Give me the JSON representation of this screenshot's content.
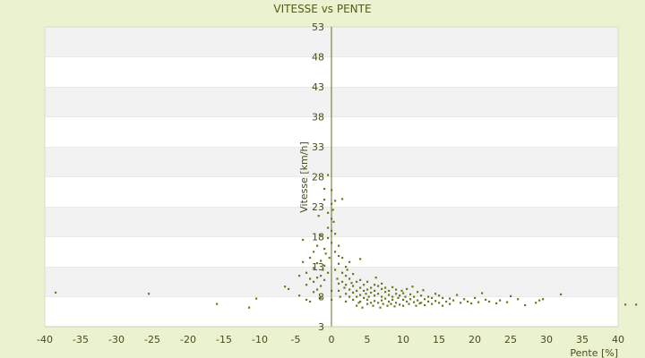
{
  "chart_data": {
    "type": "scatter",
    "title": "VITESSE vs PENTE",
    "xlabel": "Pente [%]",
    "ylabel": "Vitesse [km/h]",
    "xlim": [
      -40,
      40
    ],
    "ylim": [
      3,
      53
    ],
    "xticks": [
      "-40",
      "-35",
      "-30",
      "-25",
      "-20",
      "-15",
      "-10",
      "-5",
      "0",
      "5",
      "10",
      "15",
      "20",
      "25",
      "30",
      "35",
      "40"
    ],
    "yticks": [
      "3",
      "8",
      "13",
      "18",
      "23",
      "28",
      "33",
      "38",
      "43",
      "48",
      "53"
    ],
    "grid": true,
    "colors": {
      "background": "#ebf2cf",
      "band_light": "#ffffff",
      "band_dark": "#f2f2f2",
      "axis": "#6b6b20",
      "marker": "#6b7a1a"
    },
    "points": [
      [
        -38.5,
        8.7
      ],
      [
        -25.5,
        8.5
      ],
      [
        -16,
        6.8
      ],
      [
        -10.5,
        7.7
      ],
      [
        -11.5,
        6.2
      ],
      [
        -6.5,
        9.7
      ],
      [
        -6,
        9.3
      ],
      [
        -4.5,
        11.5
      ],
      [
        -4.5,
        8.2
      ],
      [
        -4,
        13.8
      ],
      [
        -4,
        17.5
      ],
      [
        -3.5,
        12
      ],
      [
        -3.5,
        10
      ],
      [
        -3.5,
        7.5
      ],
      [
        -3,
        11
      ],
      [
        -3,
        14.5
      ],
      [
        -3,
        7.2
      ],
      [
        -2.5,
        10.5
      ],
      [
        -2.5,
        12.8
      ],
      [
        -2.5,
        15.5
      ],
      [
        -2.5,
        8.8
      ],
      [
        -2,
        11.2
      ],
      [
        -2,
        13.6
      ],
      [
        -2,
        9.2
      ],
      [
        -2,
        16.5
      ],
      [
        -1.8,
        21.5
      ],
      [
        -1.5,
        14
      ],
      [
        -1.5,
        11.5
      ],
      [
        -1.5,
        9.8
      ],
      [
        -1.5,
        7.8
      ],
      [
        -1.5,
        18.2
      ],
      [
        -1.2,
        12.5
      ],
      [
        -1,
        16
      ],
      [
        -1,
        10.8
      ],
      [
        -1,
        13.2
      ],
      [
        -1,
        24.2
      ],
      [
        -1,
        26
      ],
      [
        -0.8,
        15.2
      ],
      [
        -0.5,
        22
      ],
      [
        -0.5,
        28.3
      ],
      [
        -0.5,
        17.8
      ],
      [
        -0.5,
        12
      ],
      [
        -0.5,
        19.5
      ],
      [
        -0.3,
        14.5
      ],
      [
        0,
        21
      ],
      [
        0,
        19
      ],
      [
        0,
        17
      ],
      [
        0,
        23.5
      ],
      [
        0,
        25.8
      ],
      [
        0,
        7.5
      ],
      [
        0,
        9
      ],
      [
        0.2,
        22.5
      ],
      [
        0.3,
        20.5
      ],
      [
        0.5,
        18.5
      ],
      [
        0.5,
        15.5
      ],
      [
        0.5,
        24
      ],
      [
        0.5,
        12.5
      ],
      [
        0.8,
        11
      ],
      [
        1,
        14.8
      ],
      [
        1,
        10.2
      ],
      [
        1,
        9
      ],
      [
        1,
        16.5
      ],
      [
        1,
        13.5
      ],
      [
        1.2,
        8
      ],
      [
        1.5,
        12
      ],
      [
        1.5,
        10.5
      ],
      [
        1.5,
        14.5
      ],
      [
        1.5,
        24.3
      ],
      [
        1.8,
        9.5
      ],
      [
        2,
        11.5
      ],
      [
        2,
        13
      ],
      [
        2,
        8.5
      ],
      [
        2,
        10
      ],
      [
        2,
        7.2
      ],
      [
        2.2,
        12.5
      ],
      [
        2.5,
        9.2
      ],
      [
        2.5,
        11
      ],
      [
        2.5,
        8
      ],
      [
        2.5,
        13.8
      ],
      [
        2.8,
        10.3
      ],
      [
        3,
        9.8
      ],
      [
        3,
        8.7
      ],
      [
        3,
        7.5
      ],
      [
        3,
        11.8
      ],
      [
        3.5,
        9
      ],
      [
        3.5,
        10.5
      ],
      [
        3.5,
        8
      ],
      [
        3.5,
        6.5
      ],
      [
        3.8,
        7
      ],
      [
        4,
        9.5
      ],
      [
        4,
        8.3
      ],
      [
        4,
        10.8
      ],
      [
        4,
        7.2
      ],
      [
        4,
        14.3
      ],
      [
        4.3,
        6.2
      ],
      [
        4.5,
        9
      ],
      [
        4.5,
        7.8
      ],
      [
        4.5,
        10
      ],
      [
        4.8,
        8.5
      ],
      [
        5,
        9.2
      ],
      [
        5,
        7.5
      ],
      [
        5,
        10.5
      ],
      [
        5,
        6.8
      ],
      [
        5.2,
        8
      ],
      [
        5.5,
        9.5
      ],
      [
        5.5,
        7
      ],
      [
        5.5,
        8.7
      ],
      [
        5.8,
        6.5
      ],
      [
        6,
        10
      ],
      [
        6,
        8.2
      ],
      [
        6,
        7.3
      ],
      [
        6,
        9
      ],
      [
        6.2,
        11.2
      ],
      [
        6.5,
        8.5
      ],
      [
        6.5,
        7
      ],
      [
        6.5,
        9.8
      ],
      [
        6.8,
        6.2
      ],
      [
        7,
        8
      ],
      [
        7,
        9.3
      ],
      [
        7,
        7.4
      ],
      [
        7,
        10.2
      ],
      [
        7.2,
        6.8
      ],
      [
        7.5,
        8.8
      ],
      [
        7.5,
        7.7
      ],
      [
        7.5,
        9.5
      ],
      [
        7.8,
        6.5
      ],
      [
        8,
        8.3
      ],
      [
        8,
        7.2
      ],
      [
        8,
        9
      ],
      [
        8.3,
        6.8
      ],
      [
        8.5,
        8
      ],
      [
        8.5,
        7.5
      ],
      [
        8.5,
        9.6
      ],
      [
        8.8,
        6.4
      ],
      [
        9,
        8.5
      ],
      [
        9,
        7
      ],
      [
        9,
        9.2
      ],
      [
        9.3,
        7.8
      ],
      [
        9.5,
        8.2
      ],
      [
        9.5,
        6.7
      ],
      [
        9.8,
        9
      ],
      [
        10,
        7.5
      ],
      [
        10,
        8.6
      ],
      [
        10,
        6.5
      ],
      [
        10.3,
        8
      ],
      [
        10.5,
        7.2
      ],
      [
        10.5,
        9.3
      ],
      [
        10.8,
        6.8
      ],
      [
        11,
        8.4
      ],
      [
        11,
        7.6
      ],
      [
        11.3,
        9.7
      ],
      [
        11.5,
        7.1
      ],
      [
        11.5,
        8
      ],
      [
        11.8,
        6.5
      ],
      [
        12,
        8.8
      ],
      [
        12,
        7.4
      ],
      [
        12.3,
        6.9
      ],
      [
        12.5,
        8.2
      ],
      [
        12.5,
        7
      ],
      [
        12.8,
        9.1
      ],
      [
        13,
        7.6
      ],
      [
        13,
        6.6
      ],
      [
        13.5,
        8
      ],
      [
        13.5,
        7.2
      ],
      [
        14,
        7.8
      ],
      [
        14,
        6.8
      ],
      [
        14.5,
        8.5
      ],
      [
        14.5,
        7.3
      ],
      [
        15,
        7
      ],
      [
        15,
        8.2
      ],
      [
        15.5,
        6.5
      ],
      [
        15.5,
        7.8
      ],
      [
        16,
        7.2
      ],
      [
        16.5,
        7.7
      ],
      [
        16.5,
        6.8
      ],
      [
        17,
        7.4
      ],
      [
        17.5,
        8.3
      ],
      [
        18,
        7
      ],
      [
        18.5,
        7.6
      ],
      [
        19,
        7.2
      ],
      [
        19.5,
        6.9
      ],
      [
        20,
        7.8
      ],
      [
        20.5,
        7.1
      ],
      [
        21,
        8.6
      ],
      [
        21.5,
        7.5
      ],
      [
        22,
        7.2
      ],
      [
        23,
        6.9
      ],
      [
        23.5,
        7.4
      ],
      [
        24.5,
        7.1
      ],
      [
        25,
        8.1
      ],
      [
        26,
        7.6
      ],
      [
        27,
        6.6
      ],
      [
        28.5,
        7
      ],
      [
        29,
        7.4
      ],
      [
        29.5,
        7.6
      ],
      [
        32,
        8.4
      ],
      [
        41,
        6.7
      ],
      [
        42.5,
        6.7
      ]
    ]
  }
}
